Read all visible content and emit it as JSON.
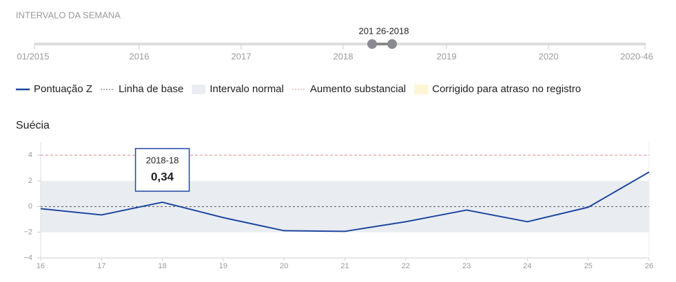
{
  "range_slider": {
    "label": "INTERVALO DA SEMANA",
    "ticks": [
      "01/2015",
      "2016",
      "2017",
      "2018",
      "2019",
      "2020",
      "2020-46"
    ],
    "selection_label": "201 26-2018"
  },
  "chart_data": {
    "type": "line",
    "title": "Suécia",
    "x": [
      16,
      17,
      18,
      19,
      20,
      21,
      22,
      23,
      24,
      25,
      26
    ],
    "xlim": [
      16,
      26
    ],
    "xticks": [
      16,
      17,
      18,
      19,
      20,
      21,
      22,
      23,
      24,
      25,
      26
    ],
    "ylim": [
      -4,
      5
    ],
    "yticks": [
      {
        "value": -4,
        "label": "−4"
      },
      {
        "value": -2,
        "label": "−2"
      },
      0,
      2,
      4
    ],
    "series": [
      {
        "name": "Pontuação Z",
        "color": "#1f47a0",
        "values": [
          -0.16,
          -0.65,
          0.34,
          -0.86,
          -1.88,
          -1.93,
          -1.18,
          -0.27,
          -1.18,
          -0.05,
          2.69
        ]
      }
    ],
    "baseline": {
      "name": "Linha de base",
      "value": 0,
      "color": "#555555"
    },
    "normal_range": {
      "name": "Intervalo normal",
      "values": [
        -2,
        2
      ],
      "color": "#e9edf2"
    },
    "substantial_increase": {
      "name": "Aumento substancial",
      "value": 4,
      "color": "#e88a8a"
    },
    "delay_correction": {
      "name": "Corrigido para atraso no registro",
      "color": "#fdf5d4"
    },
    "tooltip": {
      "x_label": "2018-18",
      "value_label": "0,34",
      "index": 2
    }
  }
}
